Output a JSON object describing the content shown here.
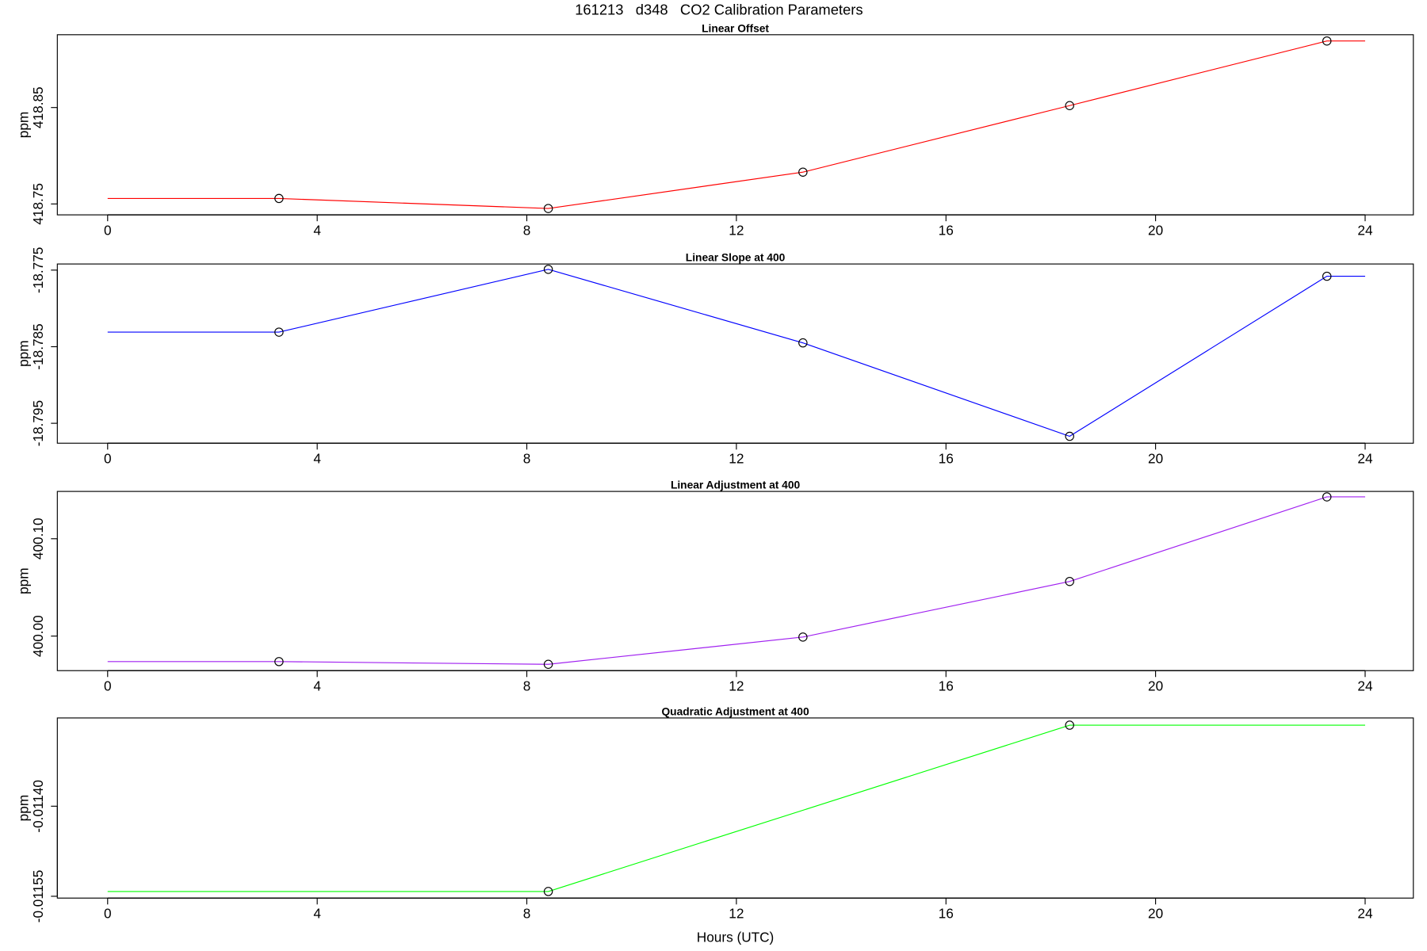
{
  "title": "161213   d348   CO2 Calibration Parameters",
  "chart_data": [
    {
      "type": "line",
      "title": "Linear Offset",
      "ylabel": "ppm",
      "x": [
        0,
        3.27,
        8.41,
        13.27,
        18.36,
        23.27,
        24
      ],
      "series": [
        {
          "color": "#ff0000",
          "values": [
            418.7557,
            418.7557,
            418.7453,
            418.783,
            418.852,
            418.919,
            418.919
          ]
        },
        {
          "color": "#000000",
          "marker": "circle",
          "values": [
            null,
            418.7557,
            418.7453,
            418.783,
            418.852,
            418.919,
            null
          ]
        }
      ],
      "xlim": [
        -0.96,
        24.92
      ],
      "xticks": [
        0,
        4,
        8,
        12,
        16,
        20,
        24
      ],
      "ylim": [
        418.7387,
        418.9255
      ],
      "yticks": [
        418.75,
        418.85
      ]
    },
    {
      "type": "line",
      "title": "Linear Slope at 400",
      "ylabel": "ppm",
      "x": [
        0,
        3.27,
        8.41,
        13.27,
        18.36,
        23.27,
        24
      ],
      "series": [
        {
          "color": "#0000ff",
          "values": [
            -18.7831,
            -18.7831,
            -18.7749,
            -18.7845,
            -18.7967,
            -18.7758,
            -18.7758
          ]
        },
        {
          "color": "#000000",
          "marker": "circle",
          "values": [
            null,
            -18.7831,
            -18.7749,
            -18.7845,
            -18.7967,
            -18.7758,
            null
          ]
        }
      ],
      "xlim": [
        -0.96,
        24.92
      ],
      "xticks": [
        0,
        4,
        8,
        12,
        16,
        20,
        24
      ],
      "ylim": [
        -18.7976,
        -18.7742
      ],
      "yticks": [
        -18.775,
        -18.785,
        -18.795
      ]
    },
    {
      "type": "line",
      "title": "Linear Adjustment at 400",
      "ylabel": "ppm",
      "x": [
        0,
        3.27,
        8.41,
        13.27,
        18.36,
        23.27,
        24
      ],
      "series": [
        {
          "color": "#a020f0",
          "values": [
            399.9738,
            399.9738,
            399.971,
            399.999,
            400.0561,
            400.143,
            400.143
          ]
        },
        {
          "color": "#000000",
          "marker": "circle",
          "values": [
            null,
            399.9738,
            399.971,
            399.999,
            400.0561,
            400.143,
            null
          ]
        }
      ],
      "xlim": [
        -0.96,
        24.92
      ],
      "xticks": [
        0,
        4,
        8,
        12,
        16,
        20,
        24
      ],
      "ylim": [
        399.9645,
        400.1486
      ],
      "yticks": [
        {
          "value": 400,
          "label": "400.00"
        },
        {
          "value": 400.1,
          "label": "400.10"
        }
      ]
    },
    {
      "type": "line",
      "title": "Quadratic Adjustment at 400",
      "ylabel": "ppm",
      "xlabel": "Hours (UTC)",
      "x": [
        0,
        8.41,
        18.36,
        24
      ],
      "series": [
        {
          "color": "#00ff00",
          "values": [
            -0.011542,
            -0.011542,
            -0.011265,
            -0.011265
          ]
        },
        {
          "color": "#000000",
          "marker": "circle",
          "values": [
            null,
            -0.011542,
            -0.011265,
            null
          ]
        }
      ],
      "xlim": [
        -0.96,
        24.92
      ],
      "xticks": [
        0,
        4,
        8,
        12,
        16,
        20,
        24
      ],
      "ylim": [
        -0.011553,
        -0.011253
      ],
      "yticks": [
        {
          "value": -0.0114,
          "label": "-0.01140"
        },
        -0.01155
      ]
    }
  ]
}
